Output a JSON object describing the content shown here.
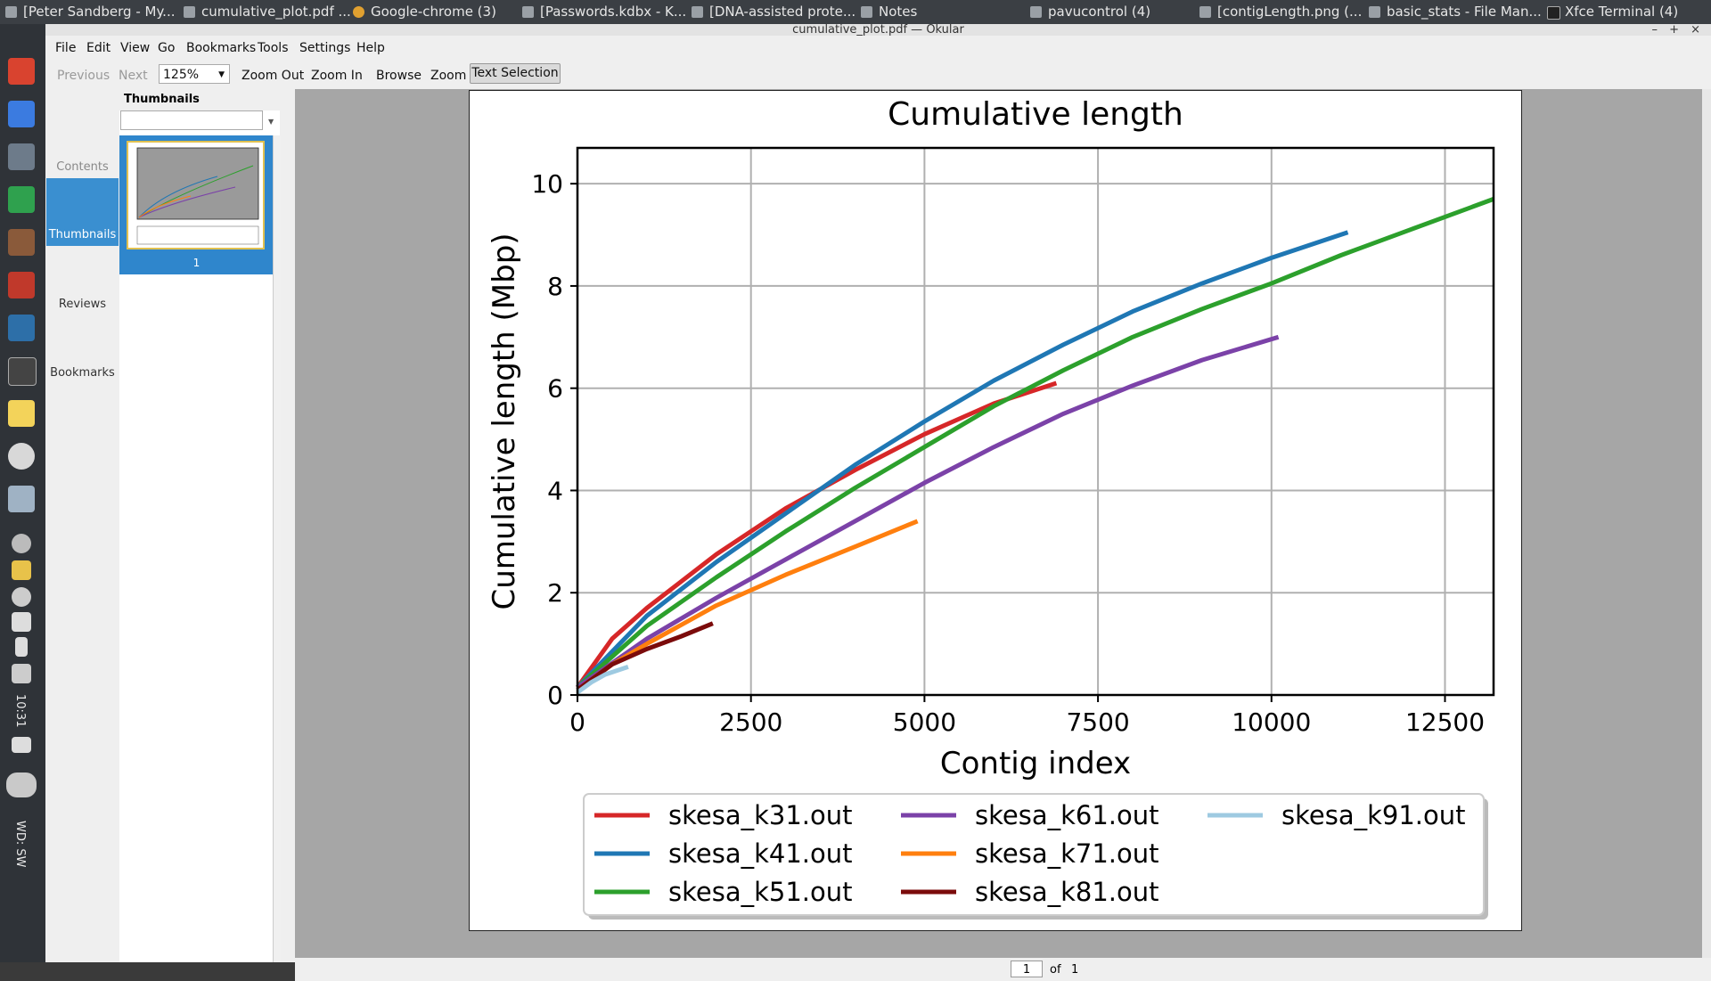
{
  "taskbar": {
    "tasks": [
      "[Peter Sandberg - My...",
      "cumulative_plot.pdf ...",
      "Google-chrome (3)",
      "[Passwords.kdbx - K...",
      "[DNA-assisted prote...",
      "Notes",
      "pavucontrol (4)",
      "[contigLength.png (...",
      "basic_stats - File Man...",
      "Xfce Terminal (4)"
    ]
  },
  "dock": {
    "clock": "10:31",
    "workspace": "WD: SW"
  },
  "window": {
    "title": "cumulative_plot.pdf — Okular",
    "menu": [
      "File",
      "Edit",
      "View",
      "Go",
      "Bookmarks",
      "Tools",
      "Settings",
      "Help"
    ],
    "toolbar": {
      "previous": "Previous",
      "next": "Next",
      "zoom_value": "125%",
      "zoom_out": "Zoom Out",
      "zoom_in": "Zoom In",
      "browse": "Browse",
      "zoom": "Zoom",
      "text_selection": "Text Selection"
    },
    "sidebar": {
      "tabs": [
        "Contents",
        "Thumbnails",
        "Reviews",
        "Bookmarks"
      ],
      "active_tab": "Thumbnails",
      "panel_title": "Thumbnails",
      "thumbnail_page": "1"
    },
    "pager": {
      "current": "1",
      "of_label": "of",
      "total": "1"
    }
  },
  "chart_data": {
    "type": "line",
    "title": "Cumulative length",
    "xlabel": "Contig index",
    "ylabel": "Cumulative length (Mbp)",
    "xlim": [
      0,
      13200
    ],
    "ylim": [
      0,
      10.7
    ],
    "xticks": [
      0,
      2500,
      5000,
      7500,
      10000,
      12500
    ],
    "yticks": [
      0,
      2,
      4,
      6,
      8,
      10
    ],
    "grid": true,
    "legend_position": "bottom",
    "series": [
      {
        "name": "skesa_k31.out",
        "color": "#d62728",
        "x": [
          0,
          500,
          1000,
          2000,
          3000,
          4000,
          5000,
          6000,
          6900
        ],
        "y": [
          0.15,
          1.1,
          1.7,
          2.75,
          3.65,
          4.4,
          5.1,
          5.7,
          6.1
        ]
      },
      {
        "name": "skesa_k41.out",
        "color": "#1f77b4",
        "x": [
          0,
          1000,
          2000,
          3000,
          4000,
          5000,
          6000,
          7000,
          8000,
          9000,
          10000,
          11100
        ],
        "y": [
          0.15,
          1.55,
          2.6,
          3.55,
          4.5,
          5.35,
          6.15,
          6.85,
          7.5,
          8.05,
          8.55,
          9.05
        ]
      },
      {
        "name": "skesa_k51.out",
        "color": "#2ca02c",
        "x": [
          0,
          1000,
          2000,
          3000,
          4000,
          5000,
          6000,
          7000,
          8000,
          9000,
          10000,
          11000,
          12000,
          13200
        ],
        "y": [
          0.15,
          1.35,
          2.3,
          3.2,
          4.05,
          4.85,
          5.65,
          6.35,
          7.0,
          7.55,
          8.05,
          8.6,
          9.1,
          9.7
        ]
      },
      {
        "name": "skesa_k61.out",
        "color": "#7b42a8",
        "x": [
          0,
          1000,
          2000,
          3000,
          4000,
          5000,
          6000,
          7000,
          8000,
          9000,
          10100
        ],
        "y": [
          0.15,
          1.1,
          1.9,
          2.65,
          3.4,
          4.15,
          4.85,
          5.5,
          6.05,
          6.55,
          7.0
        ]
      },
      {
        "name": "skesa_k71.out",
        "color": "#ff7f0e",
        "x": [
          0,
          500,
          1000,
          2000,
          3000,
          4000,
          4900
        ],
        "y": [
          0.1,
          0.6,
          1.0,
          1.75,
          2.35,
          2.9,
          3.4
        ]
      },
      {
        "name": "skesa_k81.out",
        "color": "#7b0b0b",
        "x": [
          0,
          500,
          1000,
          1500,
          1950
        ],
        "y": [
          0.1,
          0.6,
          0.9,
          1.15,
          1.4
        ]
      },
      {
        "name": "skesa_k91.out",
        "color": "#9ecae1",
        "x": [
          0,
          200,
          400,
          730
        ],
        "y": [
          0.05,
          0.25,
          0.4,
          0.55
        ]
      }
    ]
  }
}
